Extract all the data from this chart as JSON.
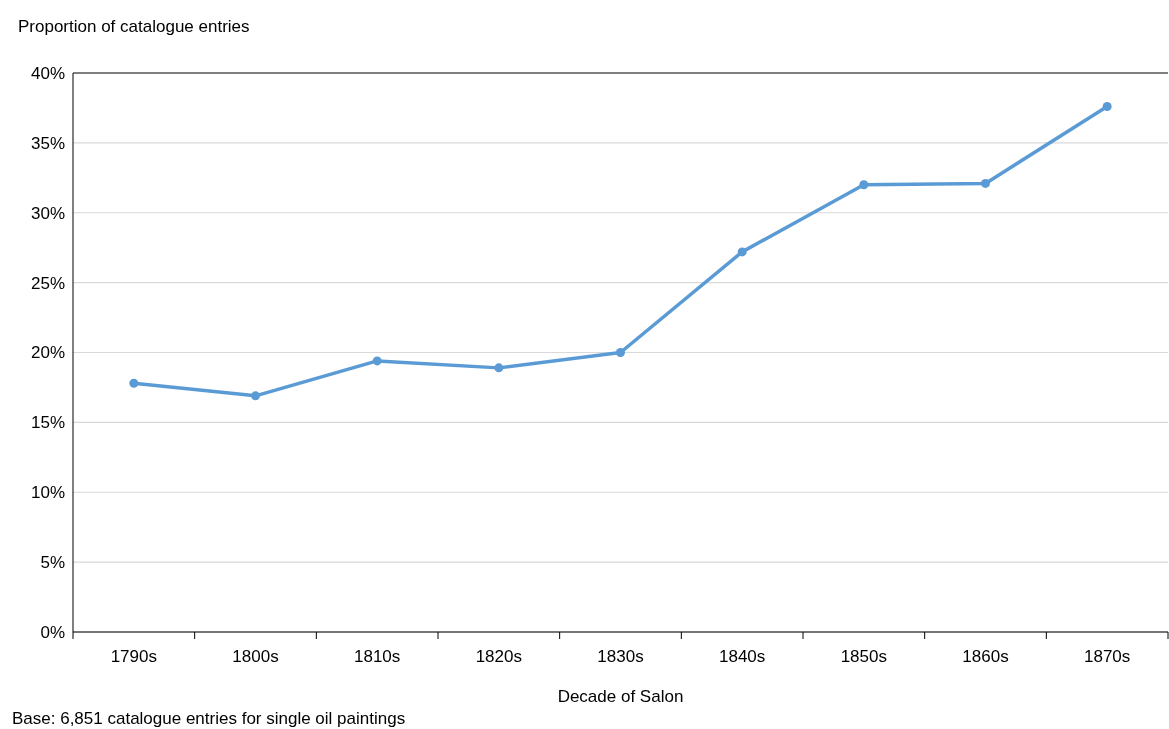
{
  "chart_data": {
    "type": "line",
    "ylabel": "Proportion of catalogue entries",
    "xlabel": "Decade of Salon",
    "annotations": [
      "Base: 6,851 catalogue entries for single oil paintings"
    ],
    "categories": [
      "1790s",
      "1800s",
      "1810s",
      "1820s",
      "1830s",
      "1840s",
      "1850s",
      "1860s",
      "1870s"
    ],
    "series": [
      {
        "color": "#5b9bd5",
        "values": [
          17.8,
          16.9,
          19.4,
          18.9,
          20.0,
          27.2,
          32.0,
          32.1,
          37.6
        ]
      }
    ],
    "ylim": [
      0,
      40
    ],
    "yticks": [
      {
        "value": 0,
        "label": "0%"
      },
      {
        "value": 5,
        "label": "5%"
      },
      {
        "value": 10,
        "label": "10%"
      },
      {
        "value": 15,
        "label": "15%"
      },
      {
        "value": 20,
        "label": "20%"
      },
      {
        "value": 25,
        "label": "25%"
      },
      {
        "value": 30,
        "label": "30%"
      },
      {
        "value": 35,
        "label": "35%"
      },
      {
        "value": 40,
        "label": "40%"
      }
    ],
    "grid": "y",
    "marker": "circle",
    "line_style": "solid"
  }
}
